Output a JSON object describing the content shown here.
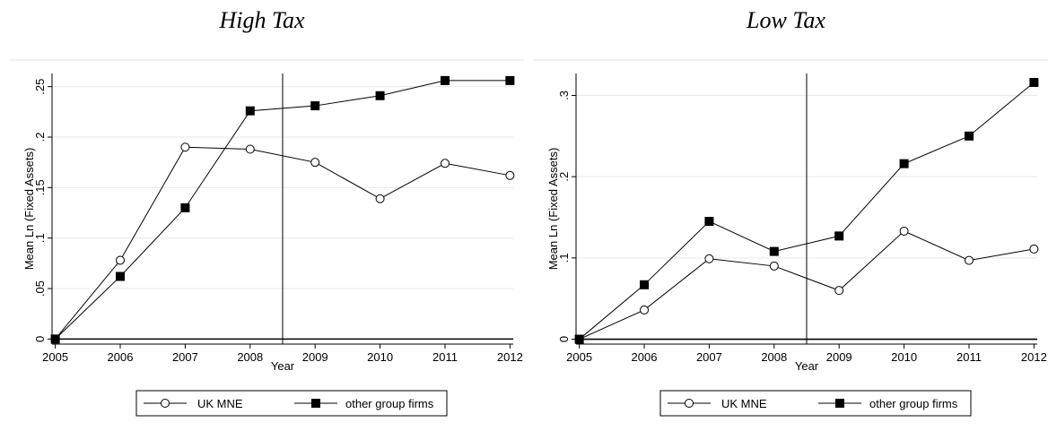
{
  "chart_data": [
    {
      "type": "line",
      "title": "High Tax",
      "xlabel": "Year",
      "ylabel": "Mean Ln (Fixed Assets)",
      "x": [
        2005,
        2006,
        2007,
        2008,
        2009,
        2010,
        2011,
        2012
      ],
      "xticks": [
        "2005",
        "2006",
        "2007",
        "2008",
        "2009",
        "2010",
        "2011",
        "2012"
      ],
      "yticks": [
        {
          "value": 0,
          "label": "0"
        },
        {
          "value": 0.05,
          "label": ".05"
        },
        {
          "value": 0.1,
          "label": ".1"
        },
        {
          "value": 0.15,
          "label": ".15"
        },
        {
          "value": 0.2,
          "label": ".2"
        },
        {
          "value": 0.25,
          "label": ".25"
        }
      ],
      "ylim": [
        -0.005,
        0.263
      ],
      "xlim": [
        2004.95,
        2012.05
      ],
      "vline": 2008.5,
      "hline": 0,
      "grid": true,
      "legend": "bottom",
      "series": [
        {
          "name": "UK MNE",
          "marker": "circle-open",
          "values": [
            0,
            0.078,
            0.19,
            0.188,
            0.175,
            0.139,
            0.174,
            0.162
          ]
        },
        {
          "name": "other group firms",
          "marker": "square-filled",
          "values": [
            0,
            0.062,
            0.13,
            0.226,
            0.231,
            0.241,
            0.256,
            0.256
          ]
        }
      ]
    },
    {
      "type": "line",
      "title": "Low Tax",
      "xlabel": "Year",
      "ylabel": "Mean Ln (Fixed Assets)",
      "x": [
        2005,
        2006,
        2007,
        2008,
        2009,
        2010,
        2011,
        2012
      ],
      "xticks": [
        "2005",
        "2006",
        "2007",
        "2008",
        "2009",
        "2010",
        "2011",
        "2012"
      ],
      "yticks": [
        {
          "value": 0,
          "label": "0"
        },
        {
          "value": 0.1,
          "label": ".1"
        },
        {
          "value": 0.2,
          "label": ".2"
        },
        {
          "value": 0.3,
          "label": ".3"
        }
      ],
      "ylim": [
        -0.006,
        0.327
      ],
      "xlim": [
        2004.95,
        2012.05
      ],
      "vline": 2008.5,
      "hline": 0,
      "grid": true,
      "legend": "bottom",
      "series": [
        {
          "name": "UK MNE",
          "marker": "circle-open",
          "values": [
            0,
            0.036,
            0.099,
            0.09,
            0.06,
            0.133,
            0.097,
            0.111
          ]
        },
        {
          "name": "other group firms",
          "marker": "square-filled",
          "values": [
            0,
            0.067,
            0.145,
            0.108,
            0.127,
            0.216,
            0.25,
            0.316
          ]
        }
      ]
    }
  ]
}
